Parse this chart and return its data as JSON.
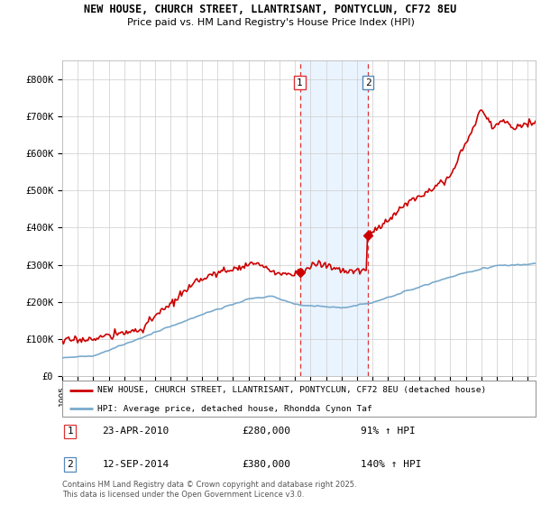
{
  "title_line1": "NEW HOUSE, CHURCH STREET, LLANTRISANT, PONTYCLUN, CF72 8EU",
  "title_line2": "Price paid vs. HM Land Registry's House Price Index (HPI)",
  "background_color": "#ffffff",
  "grid_color": "#cccccc",
  "red_line_color": "#cc0000",
  "blue_line_color": "#7aaacc",
  "marker1_date": 2010.31,
  "marker2_date": 2014.71,
  "marker1_price": 280000,
  "marker2_price": 380000,
  "vline_color": "#dd3333",
  "shade_color": "#ddeeff",
  "ann2_box_color": "#5588bb",
  "legend_entries": [
    "NEW HOUSE, CHURCH STREET, LLANTRISANT, PONTYCLUN, CF72 8EU (detached house)",
    "HPI: Average price, detached house, Rhondda Cynon Taf"
  ],
  "annotation1_date": "23-APR-2010",
  "annotation2_date": "12-SEP-2014",
  "annotation1_price": "£280,000",
  "annotation2_price": "£380,000",
  "annotation1_hpi": "91% ↑ HPI",
  "annotation2_hpi": "140% ↑ HPI",
  "footer": "Contains HM Land Registry data © Crown copyright and database right 2025.\nThis data is licensed under the Open Government Licence v3.0.",
  "ylim_max": 850000,
  "xmin": 1995,
  "xmax": 2025.5
}
